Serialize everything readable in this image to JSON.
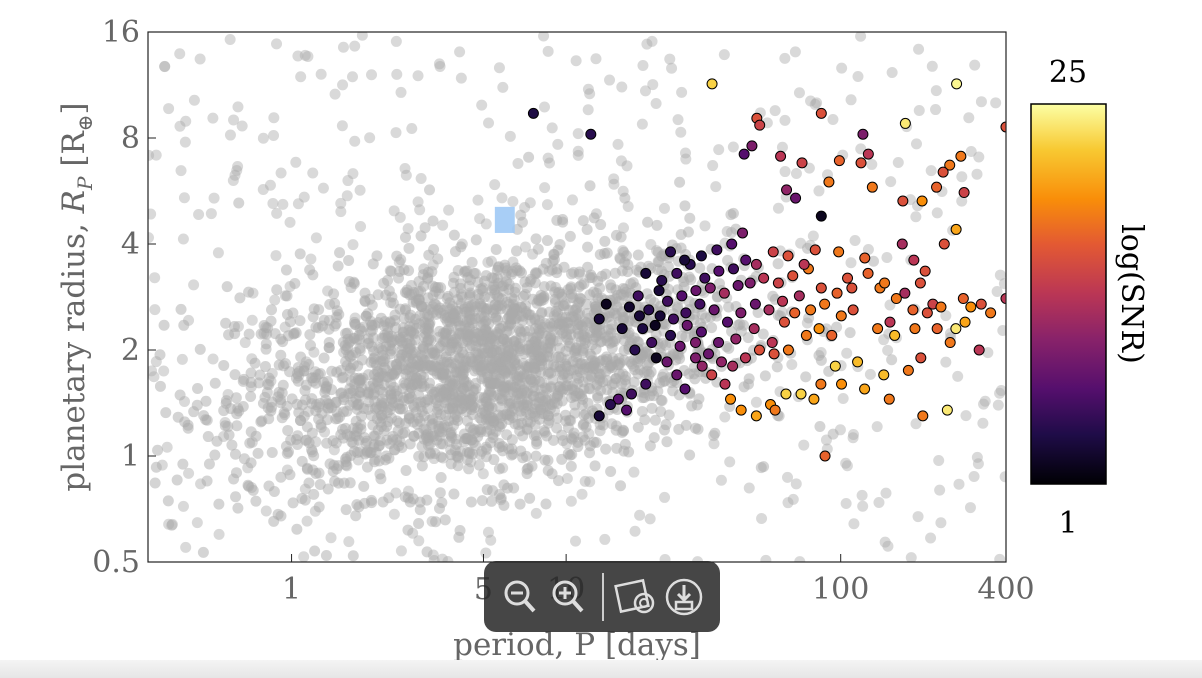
{
  "chart_data": {
    "type": "scatter",
    "title": "",
    "xlabel": "period, P [days]",
    "ylabel_text": "planetary radius, ",
    "ylabel_symbol": "R",
    "ylabel_sub": "P",
    "ylabel_unit_open": " [R",
    "ylabel_unit_sub": "⊕",
    "ylabel_unit_close": "]",
    "x_scale": "log",
    "y_scale": "log",
    "xlim": [
      0.3,
      400
    ],
    "ylim": [
      0.5,
      16
    ],
    "x_ticks": [
      1,
      5,
      10,
      100,
      400
    ],
    "x_tick_labels": [
      "1",
      "5",
      "10",
      "100",
      "400"
    ],
    "y_ticks": [
      0.5,
      1,
      2,
      4,
      8,
      16
    ],
    "y_tick_labels": [
      "0.5",
      "1",
      "2",
      "4",
      "8",
      "16"
    ],
    "grid": false,
    "colorbar": {
      "label": "log(SNR)",
      "min_label": "1",
      "max_label": "25",
      "colormap": "inferno"
    },
    "highlight_box": {
      "x_range": [
        5.5,
        6.5
      ],
      "y_range": [
        4.3,
        5.1
      ],
      "color": "#9ec9f5"
    },
    "background_series": {
      "name": "",
      "color": "#aaaaaa",
      "count": 2400,
      "center_x": 5,
      "center_y": 1.8,
      "note_points": []
    },
    "highlighted_points": [
      [
        7.6,
        9.4,
        0.12
      ],
      [
        12.3,
        8.2,
        0.15
      ],
      [
        34.0,
        11.4,
        0.9
      ],
      [
        49.5,
        9.1,
        0.6
      ],
      [
        50.7,
        8.7,
        0.55
      ],
      [
        47.5,
        7.6,
        0.35
      ],
      [
        44.5,
        7.2,
        0.25
      ],
      [
        60.4,
        7.1,
        0.5
      ],
      [
        72.3,
        6.8,
        0.55
      ],
      [
        85.0,
        9.4,
        0.6
      ],
      [
        98.9,
        6.9,
        0.65
      ],
      [
        120.5,
        8.2,
        0.35
      ],
      [
        126.1,
        7.2,
        0.5
      ],
      [
        172.0,
        8.8,
        0.95
      ],
      [
        264.3,
        11.4,
        0.98
      ],
      [
        249.5,
        6.7,
        0.7
      ],
      [
        236.1,
        6.4,
        0.6
      ],
      [
        274.0,
        7.1,
        0.7
      ],
      [
        223.4,
        5.8,
        0.65
      ],
      [
        197.9,
        5.3,
        0.75
      ],
      [
        168.4,
        5.3,
        0.6
      ],
      [
        281.5,
        5.6,
        0.55
      ],
      [
        399.9,
        8.6,
        0.6
      ],
      [
        63.5,
        5.7,
        0.4
      ],
      [
        68.5,
        5.4,
        0.3
      ],
      [
        118.6,
        6.8,
        0.6
      ],
      [
        90.6,
        6.0,
        0.7
      ],
      [
        130.4,
        5.8,
        0.7
      ],
      [
        85.0,
        4.8,
        0.05
      ],
      [
        167.6,
        4.0,
        0.45
      ],
      [
        263.3,
        4.4,
        0.8
      ],
      [
        238.4,
        4.0,
        0.6
      ],
      [
        195.1,
        3.1,
        0.6
      ],
      [
        109.8,
        3.0,
        0.6
      ],
      [
        139.0,
        3.0,
        0.7
      ],
      [
        171.3,
        2.9,
        0.45
      ],
      [
        216.6,
        2.7,
        0.55
      ],
      [
        279.7,
        2.8,
        0.65
      ],
      [
        399.9,
        2.8,
        0.5
      ],
      [
        325.0,
        2.7,
        0.6
      ],
      [
        151.2,
        2.4,
        0.5
      ],
      [
        186.4,
        2.3,
        0.7
      ],
      [
        136.3,
        2.3,
        0.7
      ],
      [
        100.5,
        2.5,
        0.7
      ],
      [
        111.0,
        2.6,
        0.6
      ],
      [
        157.2,
        2.2,
        0.85
      ],
      [
        224.6,
        2.3,
        0.65
      ],
      [
        250.5,
        2.1,
        0.7
      ],
      [
        283.8,
        2.4,
        0.8
      ],
      [
        319.4,
        2.0,
        0.5
      ],
      [
        262.7,
        2.3,
        0.95
      ],
      [
        195.8,
        1.9,
        0.6
      ],
      [
        176.4,
        1.75,
        0.7
      ],
      [
        143.5,
        1.7,
        0.85
      ],
      [
        122.2,
        1.55,
        0.8
      ],
      [
        100.7,
        1.6,
        0.75
      ],
      [
        84.7,
        1.6,
        0.7
      ],
      [
        79.9,
        1.45,
        0.8
      ],
      [
        71.7,
        1.5,
        0.9
      ],
      [
        63.2,
        1.5,
        0.9
      ],
      [
        55.5,
        1.4,
        0.75
      ],
      [
        49.3,
        1.3,
        0.8
      ],
      [
        43.4,
        1.35,
        0.75
      ],
      [
        39.7,
        1.45,
        0.75
      ],
      [
        37.9,
        1.6,
        0.5
      ],
      [
        33.9,
        1.7,
        0.55
      ],
      [
        31.3,
        1.8,
        0.4
      ],
      [
        29.6,
        1.9,
        0.35
      ],
      [
        27.1,
        1.55,
        0.25
      ],
      [
        25.3,
        1.7,
        0.3
      ],
      [
        23.3,
        1.85,
        0.3
      ],
      [
        21.3,
        1.9,
        0.05
      ],
      [
        19.5,
        1.6,
        0.2
      ],
      [
        17.3,
        1.5,
        0.2
      ],
      [
        15.5,
        1.45,
        0.25
      ],
      [
        13.2,
        1.3,
        0.1
      ],
      [
        14.5,
        1.4,
        0.15
      ],
      [
        16.6,
        1.35,
        0.25
      ],
      [
        87.7,
        1.0,
        0.65
      ],
      [
        199.1,
        1.3,
        0.7
      ],
      [
        244.6,
        1.35,
        0.95
      ],
      [
        150.3,
        1.45,
        0.7
      ],
      [
        57.7,
        1.35,
        0.7
      ],
      [
        95.6,
        1.8,
        0.9
      ],
      [
        115.2,
        1.85,
        0.85
      ],
      [
        64.5,
        2.0,
        0.7
      ],
      [
        75.0,
        2.2,
        0.7
      ],
      [
        83.4,
        2.3,
        0.75
      ],
      [
        92.8,
        2.2,
        0.65
      ],
      [
        56.3,
        2.1,
        0.5
      ],
      [
        48.4,
        2.3,
        0.45
      ],
      [
        41.5,
        2.15,
        0.4
      ],
      [
        35.9,
        2.1,
        0.3
      ],
      [
        31.1,
        2.25,
        0.25
      ],
      [
        27.6,
        2.35,
        0.3
      ],
      [
        24.6,
        2.45,
        0.2
      ],
      [
        22.0,
        2.5,
        0.1
      ],
      [
        20.0,
        2.6,
        0.15
      ],
      [
        18.5,
        2.5,
        0.1
      ],
      [
        17.0,
        2.65,
        0.08
      ],
      [
        23.4,
        2.75,
        0.2
      ],
      [
        26.4,
        2.85,
        0.25
      ],
      [
        29.7,
        2.95,
        0.3
      ],
      [
        33.5,
        3.0,
        0.35
      ],
      [
        37.7,
        2.9,
        0.45
      ],
      [
        42.3,
        3.05,
        0.3
      ],
      [
        46.8,
        3.1,
        0.35
      ],
      [
        52.4,
        3.2,
        0.5
      ],
      [
        59.3,
        3.1,
        0.55
      ],
      [
        66.9,
        3.25,
        0.6
      ],
      [
        76.3,
        3.4,
        0.7
      ],
      [
        85.0,
        3.0,
        0.6
      ],
      [
        40.7,
        3.4,
        0.2
      ],
      [
        36.0,
        3.35,
        0.25
      ],
      [
        32.0,
        3.2,
        0.2
      ],
      [
        28.3,
        3.5,
        0.15
      ],
      [
        25.3,
        3.3,
        0.2
      ],
      [
        22.3,
        3.15,
        0.15
      ],
      [
        31.1,
        3.7,
        0.12
      ],
      [
        27.0,
        3.6,
        0.1
      ],
      [
        45.1,
        3.6,
        0.25
      ],
      [
        49.3,
        3.5,
        0.45
      ],
      [
        56.8,
        3.8,
        0.55
      ],
      [
        64.3,
        3.7,
        0.6
      ],
      [
        73.6,
        3.5,
        0.5
      ],
      [
        70.7,
        2.85,
        0.45
      ],
      [
        61.4,
        2.75,
        0.5
      ],
      [
        54.8,
        2.6,
        0.45
      ],
      [
        48.9,
        2.7,
        0.3
      ],
      [
        43.3,
        2.55,
        0.35
      ],
      [
        38.7,
        2.4,
        0.25
      ],
      [
        34.6,
        2.6,
        0.3
      ],
      [
        30.7,
        2.7,
        0.2
      ],
      [
        27.3,
        2.55,
        0.2
      ],
      [
        24.0,
        2.2,
        0.15
      ],
      [
        21.1,
        2.35,
        0.05
      ],
      [
        19.0,
        2.3,
        0.12
      ],
      [
        17.8,
        2.0,
        0.15
      ],
      [
        20.5,
        2.1,
        0.2
      ],
      [
        26.0,
        2.05,
        0.3
      ],
      [
        29.6,
        2.1,
        0.35
      ],
      [
        33.0,
        1.95,
        0.3
      ],
      [
        36.8,
        1.85,
        0.4
      ],
      [
        40.4,
        1.8,
        0.45
      ],
      [
        45.0,
        1.9,
        0.5
      ],
      [
        50.6,
        2.0,
        0.6
      ],
      [
        57.2,
        1.95,
        0.6
      ],
      [
        62.4,
        2.4,
        0.6
      ],
      [
        68.0,
        2.55,
        0.65
      ],
      [
        77.7,
        2.6,
        0.7
      ],
      [
        87.4,
        2.7,
        0.7
      ],
      [
        97.0,
        2.9,
        0.65
      ],
      [
        105.9,
        3.2,
        0.6
      ],
      [
        125.8,
        3.3,
        0.65
      ],
      [
        144.5,
        3.1,
        0.7
      ],
      [
        159.5,
        2.8,
        0.7
      ],
      [
        183.3,
        2.6,
        0.65
      ],
      [
        206.8,
        2.55,
        0.6
      ],
      [
        231.9,
        2.65,
        0.7
      ],
      [
        297.8,
        2.65,
        0.75
      ],
      [
        351.6,
        2.55,
        0.7
      ],
      [
        184.7,
        3.6,
        0.5
      ],
      [
        203.1,
        3.35,
        0.6
      ],
      [
        122.4,
        3.65,
        0.65
      ],
      [
        98.3,
        3.8,
        0.7
      ],
      [
        80.8,
        3.85,
        0.6
      ],
      [
        14.0,
        2.7,
        0.05
      ],
      [
        13.2,
        2.45,
        0.1
      ],
      [
        16.0,
        2.3,
        0.1
      ],
      [
        18.3,
        2.85,
        0.2
      ],
      [
        21.8,
        2.95,
        0.1
      ],
      [
        19.5,
        3.3,
        0.1
      ],
      [
        24.0,
        3.8,
        0.15
      ],
      [
        35.4,
        3.85,
        0.2
      ],
      [
        40.1,
        4.0,
        0.25
      ],
      [
        43.9,
        4.3,
        0.35
      ]
    ]
  },
  "toolbar": {
    "zoom_out_icon": "zoom-out-icon",
    "zoom_in_icon": "zoom-in-icon",
    "screenshot_icon": "screenshot-icon",
    "download_icon": "download-icon"
  }
}
